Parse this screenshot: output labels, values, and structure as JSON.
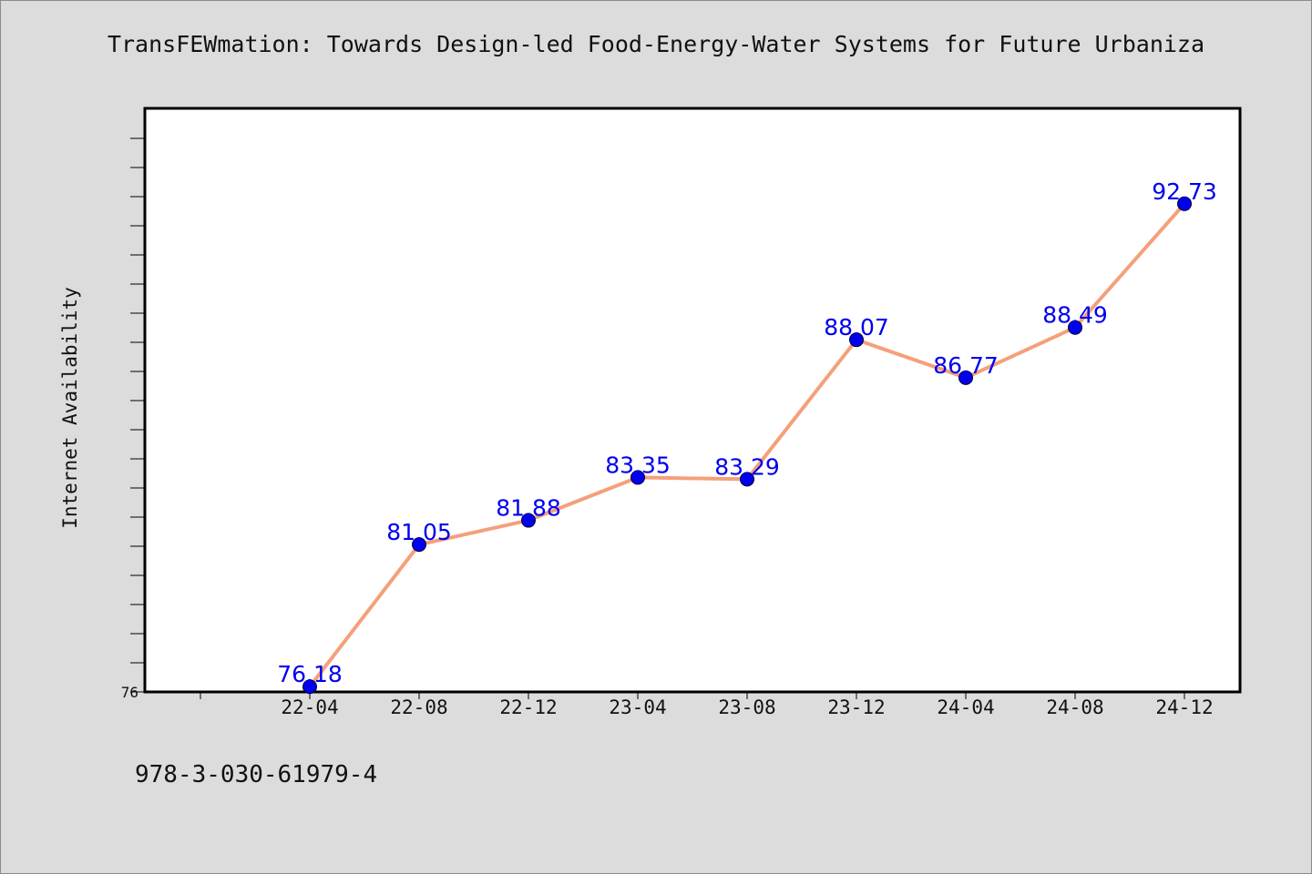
{
  "chart_data": {
    "type": "line",
    "title": "TransFEWmation: Towards Design-led Food-Energy-Water Systems for Future Urbaniza",
    "ylabel": "Internet Availability",
    "xlabel": "",
    "categories": [
      "22-04",
      "22-08",
      "22-12",
      "23-04",
      "23-08",
      "23-12",
      "24-04",
      "24-08",
      "24-12"
    ],
    "series": [
      {
        "values": [
          76.18,
          81.05,
          81.88,
          83.35,
          83.29,
          88.07,
          86.77,
          88.49,
          92.73
        ]
      }
    ],
    "data_labels": [
      "76.18",
      "81.05",
      "81.88",
      "83.35",
      "83.29",
      "88.07",
      "86.77",
      "88.49",
      "92.73"
    ],
    "y_tick_label": "76",
    "ylim": [
      76,
      96
    ],
    "grid": false,
    "legend": "none",
    "line_color": "#f4a07a",
    "marker_color": "#0000ee"
  },
  "footer": {
    "code": "978-3-030-61979-4"
  }
}
